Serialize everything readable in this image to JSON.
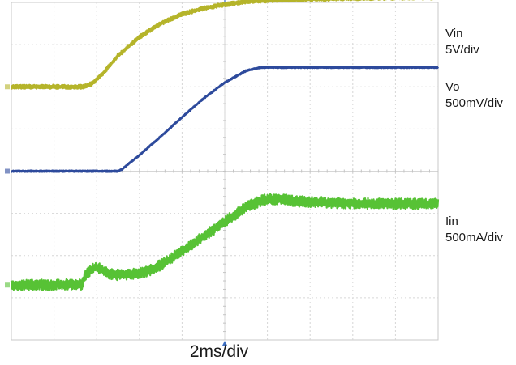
{
  "chart_data": {
    "type": "line",
    "title": "",
    "xlabel": "2ms/div",
    "ylabel": "",
    "grid": true,
    "x_units": "ms",
    "xlim": [
      0,
      20
    ],
    "y_units": "div",
    "ylim": [
      -4,
      4
    ],
    "series": [
      {
        "name": "Vin",
        "scale": "5V/div",
        "color": "#b5b42a",
        "noise": 0.05,
        "x": [
          0,
          1.0,
          3.4,
          3.8,
          4.3,
          5.0,
          6.0,
          7.0,
          8.0,
          9.0,
          10.0,
          11.0,
          12.5,
          14.0,
          16.0,
          18.0,
          20.0
        ],
        "y": [
          2.0,
          2.0,
          2.0,
          2.08,
          2.32,
          2.74,
          3.18,
          3.5,
          3.72,
          3.86,
          3.95,
          4.02,
          4.06,
          4.08,
          4.1,
          4.11,
          4.12
        ]
      },
      {
        "name": "Vo",
        "scale": "500mV/div",
        "color": "#2d4a9c",
        "noise": 0.02,
        "x": [
          0,
          1.0,
          5.0,
          5.2,
          6.0,
          7.0,
          8.0,
          9.0,
          10.0,
          11.0,
          11.6,
          12.0,
          14.0,
          16.0,
          18.0,
          20.0
        ],
        "y": [
          0.0,
          0.0,
          0.0,
          0.05,
          0.38,
          0.82,
          1.28,
          1.72,
          2.1,
          2.38,
          2.45,
          2.46,
          2.46,
          2.46,
          2.46,
          2.46
        ]
      },
      {
        "name": "Iin",
        "scale": "500mA/div",
        "color": "#57c235",
        "noise": 0.13,
        "x": [
          0,
          1.0,
          3.3,
          3.5,
          3.9,
          4.2,
          4.5,
          5.0,
          5.5,
          6.0,
          6.5,
          7.0,
          8.0,
          9.0,
          10.0,
          11.0,
          11.8,
          12.5,
          13.5,
          15.0,
          17.0,
          20.0
        ],
        "y": [
          -2.7,
          -2.7,
          -2.68,
          -2.45,
          -2.28,
          -2.32,
          -2.42,
          -2.46,
          -2.45,
          -2.42,
          -2.35,
          -2.22,
          -1.9,
          -1.55,
          -1.2,
          -0.85,
          -0.68,
          -0.66,
          -0.72,
          -0.75,
          -0.77,
          -0.78
        ]
      }
    ]
  }
}
